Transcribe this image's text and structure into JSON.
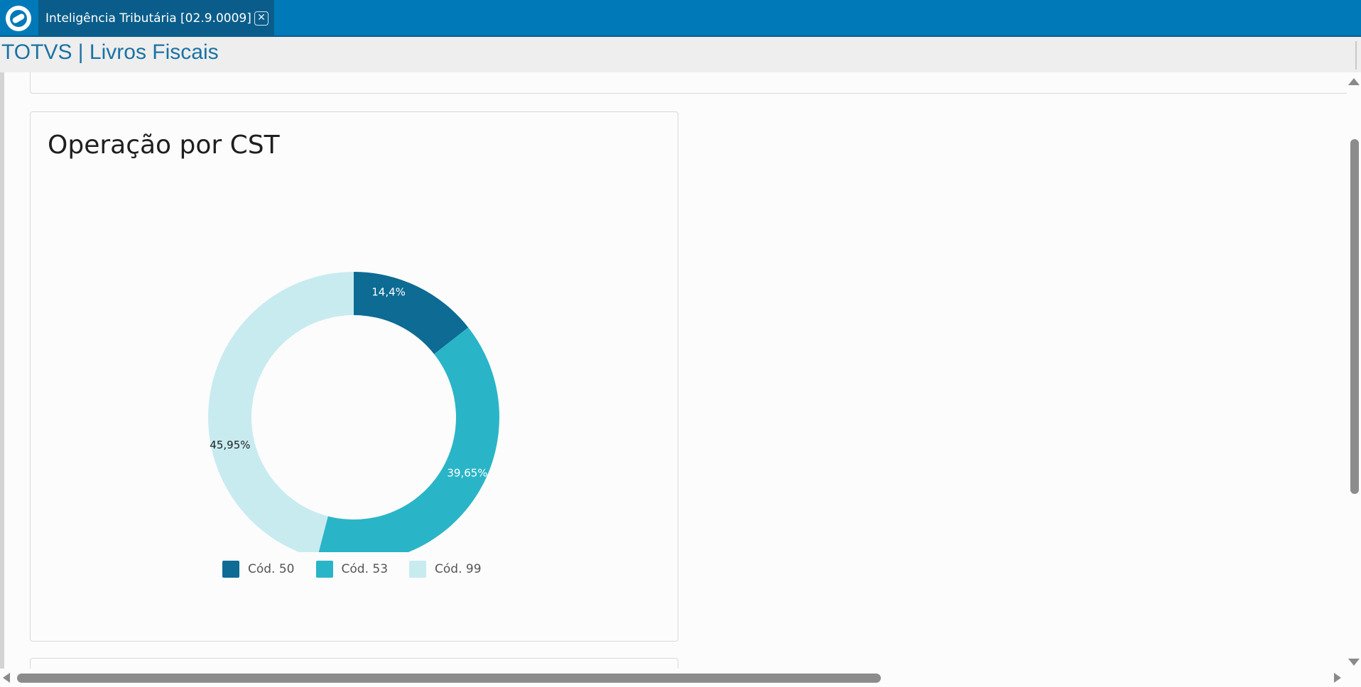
{
  "window": {
    "tab_title": "Inteligência Tributária [02.9.0009]",
    "tab_close_glyph": "✕",
    "logo_icon": "totvs-logo-icon"
  },
  "header": {
    "app_title": "TOTVS | Livros Fiscais"
  },
  "card": {
    "title": "Operação por CST"
  },
  "chart_data": {
    "type": "pie",
    "variant": "donut",
    "title": "Operação por CST",
    "categories": [
      "Cód. 50",
      "Cód. 53",
      "Cód. 99"
    ],
    "values": [
      14.4,
      39.65,
      45.95
    ],
    "data_labels": [
      "14,4%",
      "39,65%",
      "45,95%"
    ],
    "colors": [
      "#0d6b94",
      "#29b5c7",
      "#c8ebf0"
    ],
    "label_colors": [
      "#ffffff",
      "#ffffff",
      "#1f1f1f"
    ],
    "legend_position": "bottom"
  },
  "colors": {
    "topbar": "#0079b8",
    "tab_active": "#0a5d8a",
    "app_title": "#1a72a3"
  }
}
